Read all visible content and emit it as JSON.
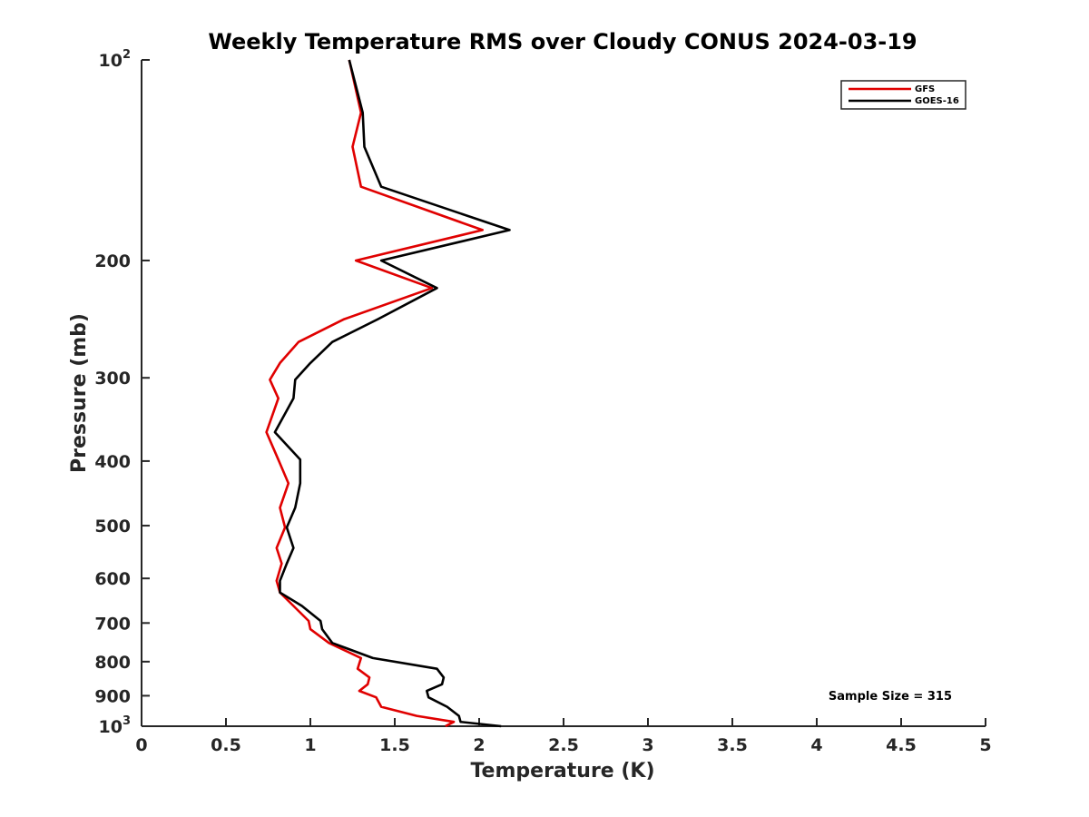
{
  "chart_data": {
    "type": "line",
    "title": "Weekly Temperature RMS over Cloudy CONUS 2024-03-19",
    "xlabel": "Temperature (K)",
    "ylabel": "Pressure (mb)",
    "xlim": [
      0,
      5
    ],
    "ylim": [
      100,
      1000
    ],
    "y_scale": "log",
    "y_reversed": true,
    "grid": false,
    "legend_position": "top-right",
    "xticks": [
      0,
      0.5,
      1,
      1.5,
      2,
      2.5,
      3,
      3.5,
      4,
      4.5,
      5
    ],
    "xtick_labels": [
      "0",
      "0.5",
      "1",
      "1.5",
      "2",
      "2.5",
      "3",
      "3.5",
      "4",
      "4.5",
      "5"
    ],
    "yticks": [
      {
        "value": 100,
        "base": "10",
        "exp": "2"
      },
      {
        "value": 200,
        "label": "200"
      },
      {
        "value": 300,
        "label": "300"
      },
      {
        "value": 400,
        "label": "400"
      },
      {
        "value": 500,
        "label": "500"
      },
      {
        "value": 600,
        "label": "600"
      },
      {
        "value": 700,
        "label": "700"
      },
      {
        "value": 800,
        "label": "800"
      },
      {
        "value": 900,
        "label": "900"
      },
      {
        "value": 1000,
        "base": "10",
        "exp": "3"
      }
    ],
    "series": [
      {
        "name": "GFS",
        "color": "#e00000",
        "points": [
          [
            1.23,
            100
          ],
          [
            1.3,
            120
          ],
          [
            1.25,
            135
          ],
          [
            1.3,
            155
          ],
          [
            2.02,
            180
          ],
          [
            1.27,
            200
          ],
          [
            1.72,
            220
          ],
          [
            1.2,
            245
          ],
          [
            0.93,
            265
          ],
          [
            0.82,
            285
          ],
          [
            0.76,
            302
          ],
          [
            0.81,
            322
          ],
          [
            0.74,
            362
          ],
          [
            0.81,
            398
          ],
          [
            0.87,
            432
          ],
          [
            0.82,
            470
          ],
          [
            0.85,
            503
          ],
          [
            0.8,
            540
          ],
          [
            0.83,
            570
          ],
          [
            0.8,
            605
          ],
          [
            0.82,
            630
          ],
          [
            0.9,
            660
          ],
          [
            0.99,
            695
          ],
          [
            1.0,
            715
          ],
          [
            1.11,
            750
          ],
          [
            1.3,
            790
          ],
          [
            1.28,
            820
          ],
          [
            1.35,
            845
          ],
          [
            1.34,
            865
          ],
          [
            1.29,
            885
          ],
          [
            1.39,
            905
          ],
          [
            1.42,
            935
          ],
          [
            1.63,
            965
          ],
          [
            1.85,
            985
          ],
          [
            1.8,
            1000
          ]
        ]
      },
      {
        "name": "GOES-16",
        "color": "#000000",
        "points": [
          [
            1.23,
            100
          ],
          [
            1.31,
            120
          ],
          [
            1.32,
            135
          ],
          [
            1.42,
            155
          ],
          [
            2.18,
            180
          ],
          [
            1.42,
            200
          ],
          [
            1.75,
            220
          ],
          [
            1.4,
            245
          ],
          [
            1.13,
            265
          ],
          [
            1.0,
            285
          ],
          [
            0.91,
            302
          ],
          [
            0.9,
            322
          ],
          [
            0.79,
            362
          ],
          [
            0.94,
            398
          ],
          [
            0.94,
            432
          ],
          [
            0.91,
            470
          ],
          [
            0.86,
            503
          ],
          [
            0.9,
            540
          ],
          [
            0.86,
            570
          ],
          [
            0.82,
            605
          ],
          [
            0.82,
            630
          ],
          [
            0.95,
            660
          ],
          [
            1.06,
            695
          ],
          [
            1.07,
            715
          ],
          [
            1.13,
            750
          ],
          [
            1.37,
            790
          ],
          [
            1.75,
            820
          ],
          [
            1.79,
            845
          ],
          [
            1.78,
            865
          ],
          [
            1.69,
            885
          ],
          [
            1.7,
            905
          ],
          [
            1.81,
            935
          ],
          [
            1.88,
            965
          ],
          [
            1.89,
            985
          ],
          [
            2.13,
            1000
          ]
        ]
      }
    ],
    "annotations": [
      {
        "text": "Sample Size = 315",
        "position": "bottom-right"
      }
    ]
  }
}
